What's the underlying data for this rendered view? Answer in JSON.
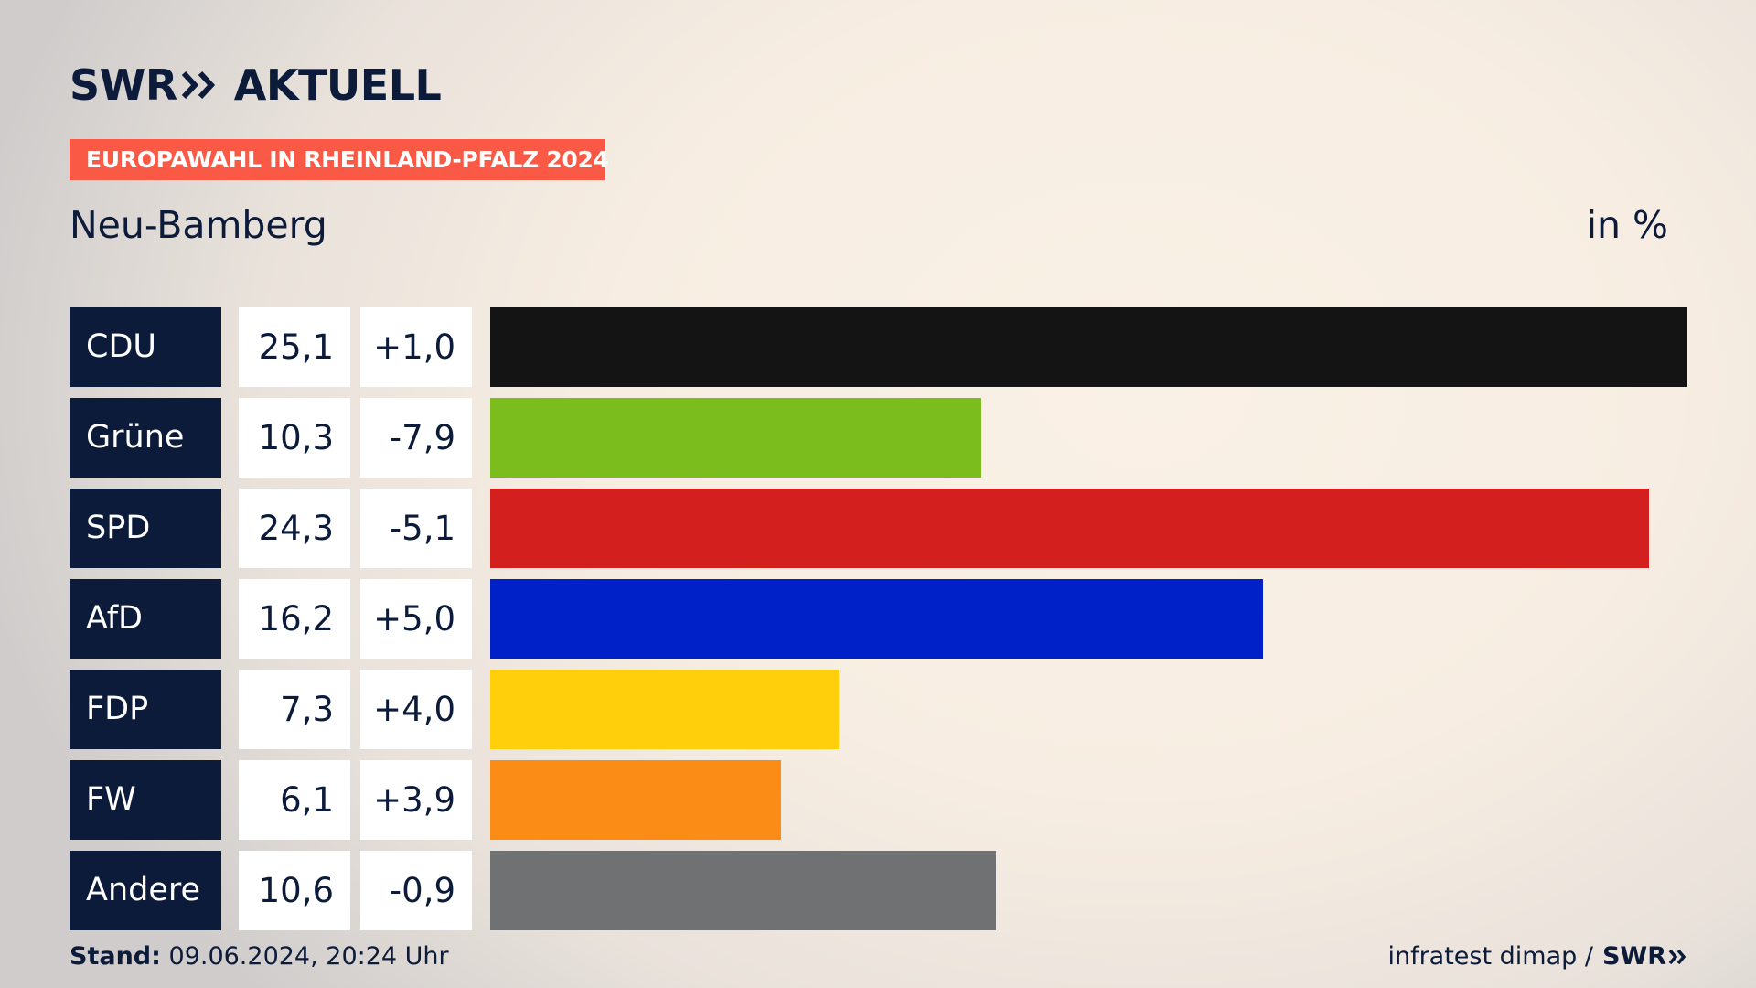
{
  "header": {
    "brand_left": "SWR",
    "brand_right": "AKTUELL",
    "tag": "EUROPAWAHL IN RHEINLAND-PFALZ 2024",
    "region": "Neu-Bamberg",
    "unit": "in %"
  },
  "chart_data": {
    "type": "bar",
    "orientation": "horizontal",
    "title": "Neu-Bamberg",
    "unit": "in %",
    "categories": [
      "CDU",
      "Grüne",
      "SPD",
      "AfD",
      "FDP",
      "FW",
      "Andere"
    ],
    "values": [
      25.1,
      10.3,
      24.3,
      16.2,
      7.3,
      6.1,
      10.6
    ],
    "value_labels": [
      "25,1",
      "10,3",
      "24,3",
      "16,2",
      "7,3",
      "6,1",
      "10,6"
    ],
    "diff_values": [
      1.0,
      -7.9,
      -5.1,
      5.0,
      4.0,
      3.9,
      -0.9
    ],
    "diff_labels": [
      "+1,0",
      "-7,9",
      "-5,1",
      "+5,0",
      "+4,0",
      "+3,9",
      "-0,9"
    ],
    "colors": [
      "#141414",
      "#7abd1c",
      "#d41f1f",
      "#0020c8",
      "#fecf0a",
      "#fb8c16",
      "#707172"
    ]
  },
  "footer": {
    "stand_label": "Stand:",
    "stand_value": "09.06.2024, 20:24 Uhr",
    "source": "infratest dimap /",
    "source_brand": "SWR"
  },
  "colors": {
    "navy": "#0c1b3a",
    "accent": "#fa5a45"
  }
}
